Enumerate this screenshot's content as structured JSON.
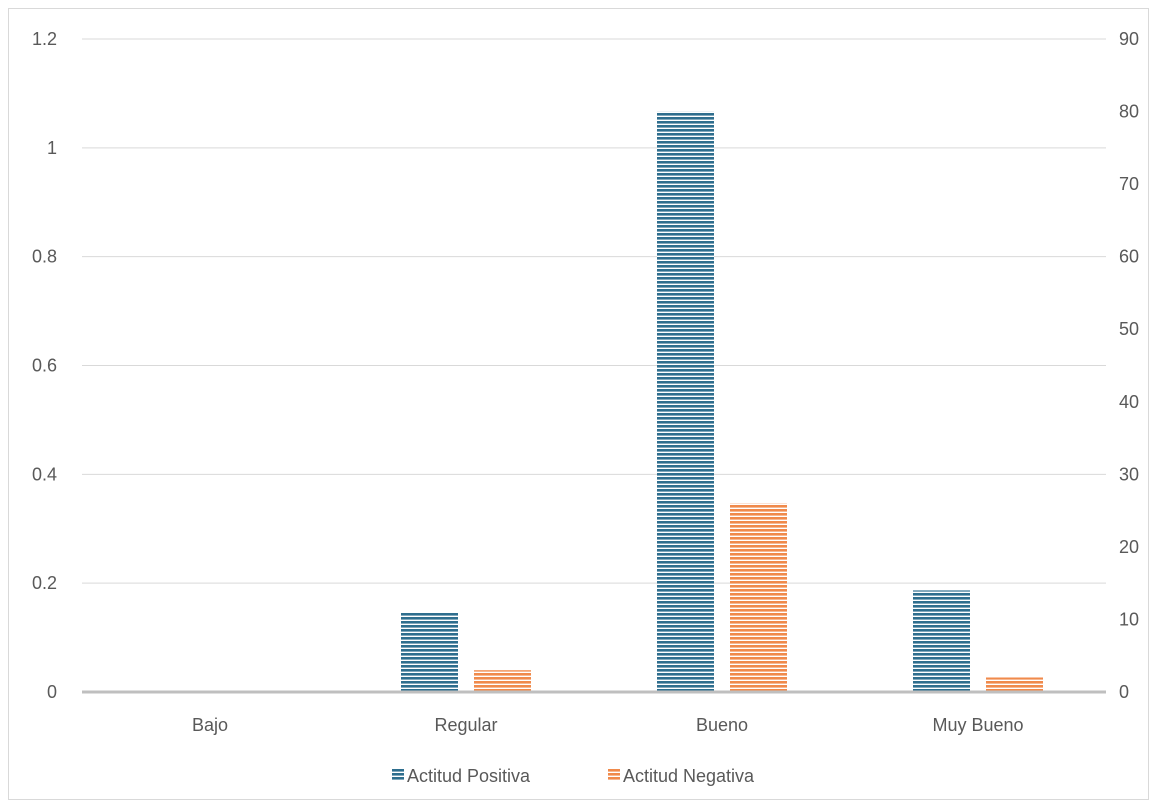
{
  "chart_data": {
    "type": "bar",
    "categories": [
      "Bajo",
      "Regular",
      "Bueno",
      "Muy Bueno"
    ],
    "series": [
      {
        "name": "Actitud Positiva",
        "axis": "right",
        "values": [
          0,
          11,
          80,
          14
        ],
        "color": "#2e6e8e"
      },
      {
        "name": "Actitud Negativa",
        "axis": "right",
        "values": [
          0,
          3,
          26,
          2
        ],
        "color": "#f08a4b"
      }
    ],
    "y_left": {
      "min": 0,
      "max": 1.2,
      "ticks": [
        0,
        0.2,
        0.4,
        0.6,
        0.8,
        1,
        1.2
      ],
      "tick_labels": [
        "0",
        "0.2",
        "0.4",
        "0.6",
        "0.8",
        "1",
        "1.2"
      ]
    },
    "y_right": {
      "min": 0,
      "max": 90,
      "ticks": [
        0,
        10,
        20,
        30,
        40,
        50,
        60,
        70,
        80,
        90
      ],
      "tick_labels": [
        "0",
        "10",
        "20",
        "30",
        "40",
        "50",
        "60",
        "70",
        "80",
        "90"
      ]
    },
    "title": "",
    "xlabel": "",
    "ylabel": "",
    "grid": true,
    "legend_position": "bottom",
    "bar_pattern": "horizontal-stripes"
  }
}
